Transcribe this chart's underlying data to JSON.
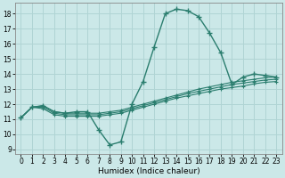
{
  "background_color": "#cbe8e8",
  "grid_color": "#b0d4d4",
  "line_color": "#2a7d6e",
  "xlabel": "Humidex (Indice chaleur)",
  "xlim": [
    -0.5,
    23.5
  ],
  "ylim": [
    8.7,
    18.7
  ],
  "yticks": [
    9,
    10,
    11,
    12,
    13,
    14,
    15,
    16,
    17,
    18
  ],
  "xticks": [
    0,
    1,
    2,
    3,
    4,
    5,
    6,
    7,
    8,
    9,
    10,
    11,
    12,
    13,
    14,
    15,
    16,
    17,
    18,
    19,
    20,
    21,
    22,
    23
  ],
  "main_x": [
    0,
    1,
    2,
    3,
    4,
    5,
    6,
    7,
    8,
    9,
    10,
    11,
    12,
    13,
    14,
    15,
    16,
    17,
    18,
    19,
    20,
    21,
    22,
    23
  ],
  "main_y": [
    11.1,
    11.8,
    11.9,
    11.5,
    11.4,
    11.5,
    11.5,
    10.3,
    9.3,
    9.5,
    12.0,
    13.5,
    15.8,
    18.0,
    18.3,
    18.2,
    17.8,
    16.7,
    15.4,
    13.3,
    13.8,
    14.0,
    13.9,
    13.8
  ],
  "ref_lines": [
    {
      "x": [
        0,
        1,
        2,
        3,
        4,
        5,
        6,
        7,
        8,
        9,
        10,
        11,
        12,
        13,
        14,
        15,
        16,
        17,
        18,
        19,
        20,
        21,
        22,
        23
      ],
      "y": [
        11.1,
        11.8,
        11.9,
        11.5,
        11.4,
        11.4,
        11.4,
        11.4,
        11.5,
        11.6,
        11.8,
        12.0,
        12.2,
        12.4,
        12.6,
        12.8,
        13.0,
        13.15,
        13.3,
        13.45,
        13.55,
        13.65,
        13.75,
        13.8
      ]
    },
    {
      "x": [
        0,
        1,
        2,
        3,
        4,
        5,
        6,
        7,
        8,
        9,
        10,
        11,
        12,
        13,
        14,
        15,
        16,
        17,
        18,
        19,
        20,
        21,
        22,
        23
      ],
      "y": [
        11.1,
        11.8,
        11.8,
        11.4,
        11.3,
        11.3,
        11.3,
        11.3,
        11.4,
        11.5,
        11.7,
        11.9,
        12.1,
        12.3,
        12.5,
        12.7,
        12.85,
        13.0,
        13.15,
        13.3,
        13.4,
        13.5,
        13.6,
        13.65
      ]
    },
    {
      "x": [
        0,
        1,
        2,
        3,
        4,
        5,
        6,
        7,
        8,
        9,
        10,
        11,
        12,
        13,
        14,
        15,
        16,
        17,
        18,
        19,
        20,
        21,
        22,
        23
      ],
      "y": [
        11.1,
        11.8,
        11.7,
        11.3,
        11.2,
        11.2,
        11.2,
        11.2,
        11.3,
        11.4,
        11.6,
        11.8,
        12.0,
        12.2,
        12.4,
        12.55,
        12.7,
        12.85,
        13.0,
        13.1,
        13.2,
        13.35,
        13.45,
        13.5
      ]
    }
  ]
}
